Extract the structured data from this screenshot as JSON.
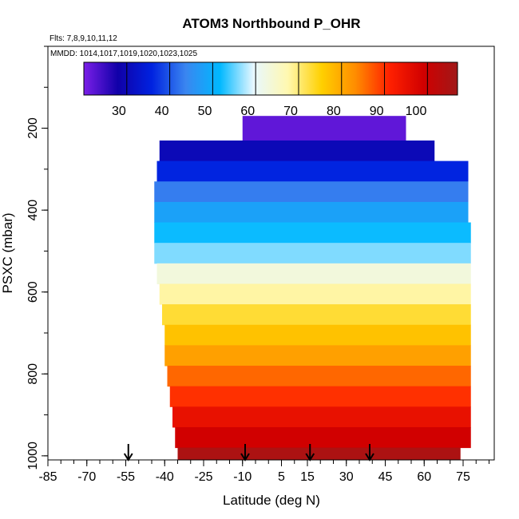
{
  "chart_data": {
    "type": "heatmap",
    "title": "ATOM3 Northbound P_OHR",
    "flights_label": "Flts: 7,8,9,10,11,12",
    "dates_label": "MMDD: 1014,1017,1019,1020,1023,1025",
    "xlabel": "Latitude (deg N)",
    "ylabel": "PSXC (mbar)",
    "xlim": [
      -85,
      87
    ],
    "ylim": [
      1010,
      0
    ],
    "y_reversed": true,
    "x_ticks": [
      -85,
      -70,
      -55,
      -40,
      -25,
      -10,
      5,
      15,
      30,
      45,
      60,
      75
    ],
    "y_ticks": [
      200,
      400,
      600,
      800,
      1000
    ],
    "colorbar": {
      "min": 20,
      "max": 107,
      "ticks": [
        30,
        40,
        50,
        60,
        70,
        80,
        90,
        100
      ],
      "colors": [
        "#7b1fe8",
        "#1000a8",
        "#0022e0",
        "#3a86f0",
        "#00b8ff",
        "#e8f8ff",
        "#fff8b0",
        "#ffd000",
        "#ff8c00",
        "#ff2000",
        "#d00000",
        "#a01818"
      ]
    },
    "series": [
      {
        "y_min": 170,
        "y_max": 230,
        "x_min": -10,
        "x_max": 53,
        "value": 22
      },
      {
        "y_min": 230,
        "y_max": 280,
        "x_min": -42,
        "x_max": 64,
        "value": 30
      },
      {
        "y_min": 280,
        "y_max": 330,
        "x_min": -43,
        "x_max": 77,
        "value": 36
      },
      {
        "y_min": 330,
        "y_max": 380,
        "x_min": -44,
        "x_max": 77,
        "value": 43
      },
      {
        "y_min": 380,
        "y_max": 430,
        "x_min": -44,
        "x_max": 77,
        "value": 48
      },
      {
        "y_min": 430,
        "y_max": 480,
        "x_min": -44,
        "x_max": 78,
        "value": 52
      },
      {
        "y_min": 480,
        "y_max": 530,
        "x_min": -44,
        "x_max": 78,
        "value": 56
      },
      {
        "y_min": 530,
        "y_max": 580,
        "x_min": -43,
        "x_max": 78,
        "value": 63
      },
      {
        "y_min": 580,
        "y_max": 630,
        "x_min": -42,
        "x_max": 78,
        "value": 68
      },
      {
        "y_min": 630,
        "y_max": 680,
        "x_min": -41,
        "x_max": 78,
        "value": 73
      },
      {
        "y_min": 680,
        "y_max": 730,
        "x_min": -40,
        "x_max": 78,
        "value": 77
      },
      {
        "y_min": 730,
        "y_max": 780,
        "x_min": -40,
        "x_max": 78,
        "value": 81
      },
      {
        "y_min": 780,
        "y_max": 830,
        "x_min": -39,
        "x_max": 78,
        "value": 86
      },
      {
        "y_min": 830,
        "y_max": 880,
        "x_min": -38,
        "x_max": 78,
        "value": 90
      },
      {
        "y_min": 880,
        "y_max": 930,
        "x_min": -37,
        "x_max": 78,
        "value": 95
      },
      {
        "y_min": 930,
        "y_max": 980,
        "x_min": -36,
        "x_max": 78,
        "value": 99
      },
      {
        "y_min": 980,
        "y_max": 1010,
        "x_min": -35,
        "x_max": 74,
        "value": 105
      }
    ],
    "markers_x": [
      -54,
      -9,
      16,
      39
    ]
  }
}
